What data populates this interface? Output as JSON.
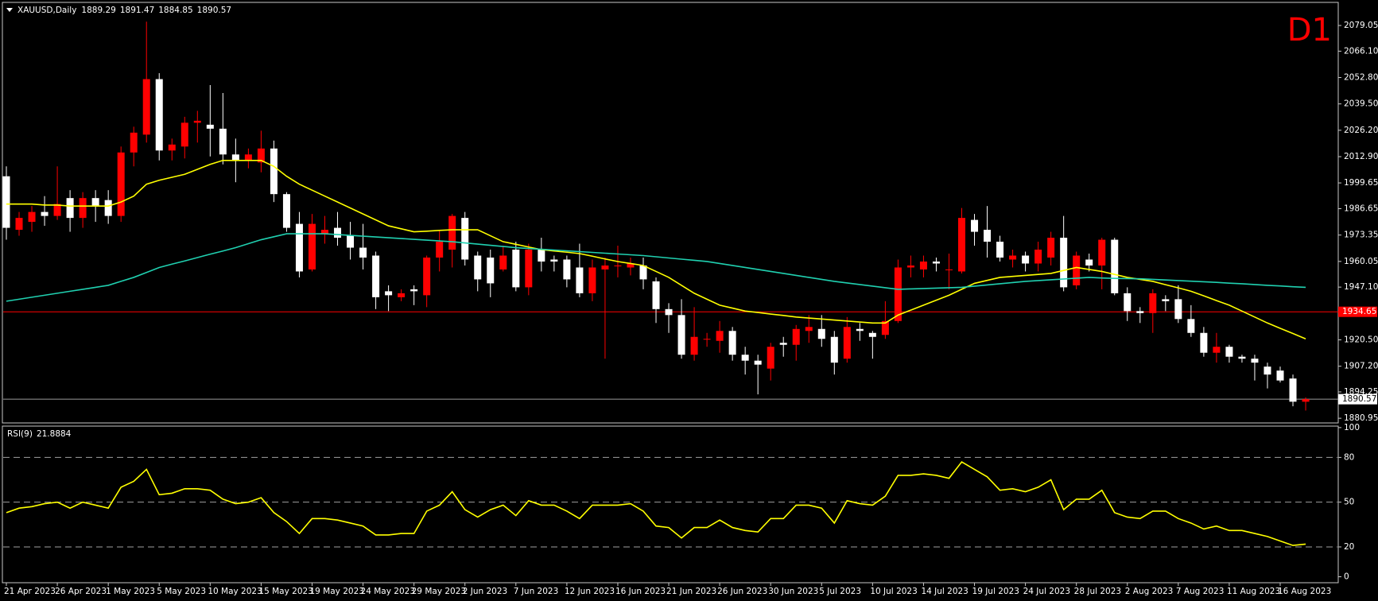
{
  "chart_data": [
    {
      "type": "candlestick",
      "title": "XAUUSD,Daily",
      "watermark": "D1",
      "watermark_color": "#ff0000",
      "categories": [
        "21 Apr 2023",
        null,
        null,
        null,
        "26 Apr 2023",
        null,
        null,
        null,
        "1 May 2023",
        null,
        null,
        null,
        "5 May 2023",
        null,
        null,
        null,
        "10 May 2023",
        null,
        null,
        null,
        "15 May 2023",
        null,
        null,
        null,
        "19 May 2023",
        null,
        null,
        null,
        "24 May 2023",
        null,
        null,
        null,
        "29 May 2023",
        null,
        null,
        null,
        "2 Jun 2023",
        null,
        null,
        null,
        "7 Jun 2023",
        null,
        null,
        null,
        "12 Jun 2023",
        null,
        null,
        null,
        "16 Jun 2023",
        null,
        null,
        null,
        "21 Jun 2023",
        null,
        null,
        null,
        "26 Jun 2023",
        null,
        null,
        null,
        "30 Jun 2023",
        null,
        null,
        null,
        "5 Jul 2023",
        null,
        null,
        null,
        "10 Jul 2023",
        null,
        null,
        null,
        "14 Jul 2023",
        null,
        null,
        null,
        "19 Jul 2023",
        null,
        null,
        null,
        "24 Jul 2023",
        null,
        null,
        null,
        "28 Jul 2023",
        null,
        null,
        null,
        "2 Aug 2023",
        null,
        null,
        null,
        "7 Aug 2023",
        null,
        null,
        null,
        "11 Aug 2023",
        null,
        null,
        null,
        "16 Aug 2023",
        null,
        null
      ],
      "open": [
        2003,
        1976,
        1980,
        1985,
        1983,
        1992,
        1982,
        1992,
        1991,
        1983,
        2015,
        2024,
        2052,
        2016,
        2018,
        2030,
        2029,
        2027,
        2014,
        2011,
        2010,
        2017,
        1994,
        1979,
        1956,
        1974,
        1977,
        1973,
        1967,
        1963,
        1945,
        1942,
        1946,
        1943,
        1962,
        1966,
        1982,
        1963,
        1962,
        1956,
        1966,
        1947,
        1966,
        1961,
        1961,
        1957,
        1944,
        1956,
        1958,
        1957,
        1958,
        1950,
        1936,
        1933,
        1913,
        1921,
        1920,
        1925,
        1913,
        1910,
        1906,
        1919,
        1918,
        1925,
        1926,
        1922,
        1911,
        1926,
        1924,
        1923,
        1930,
        1957,
        1956,
        1960,
        1956,
        1955,
        1981,
        1976,
        1970,
        1961,
        1963,
        1959,
        1962,
        1972,
        1948,
        1961,
        1958,
        1971,
        1944,
        1935,
        1934,
        1941,
        1941,
        1931,
        1924,
        1914,
        1917,
        1912,
        1911,
        1907,
        1905,
        1901,
        1889.29
      ],
      "high": [
        2008,
        1985,
        1988,
        1993,
        2008,
        1996,
        1995,
        1996,
        1996,
        2018,
        2028,
        2081,
        2055,
        2022,
        2033,
        2036,
        2049,
        2045,
        2022,
        2017,
        2026,
        2021,
        1995,
        1985,
        1984,
        1983,
        1985,
        1980,
        1979,
        1965,
        1948,
        1946,
        1948,
        1963,
        1976,
        1984,
        1985,
        1965,
        1966,
        1968,
        1970,
        1969,
        1972,
        1963,
        1963,
        1969,
        1961,
        1962,
        1968,
        1962,
        1962,
        1952,
        1939,
        1941,
        1937,
        1924,
        1930,
        1927,
        1917,
        1913,
        1919,
        1922,
        1928,
        1933,
        1933,
        1925,
        1932,
        1929,
        1925,
        1940,
        1961,
        1963,
        1963,
        1962,
        1964,
        1987,
        1984,
        1988,
        1973,
        1966,
        1965,
        1970,
        1975,
        1983,
        1965,
        1964,
        1972,
        1972,
        1947,
        1937,
        1946,
        1943,
        1948,
        1938,
        1927,
        1924,
        1918,
        1913,
        1913,
        1909,
        1907,
        1903,
        1891.47
      ],
      "low": [
        1971,
        1973,
        1975,
        1978,
        1981,
        1975,
        1977,
        1980,
        1979,
        1980,
        2008,
        2020,
        2011,
        2011,
        2012,
        2020,
        2013,
        2009,
        2000,
        2007,
        2005,
        1990,
        1975,
        1952,
        1955,
        1969,
        1968,
        1961,
        1956,
        1936,
        1935,
        1940,
        1938,
        1937,
        1955,
        1957,
        1958,
        1945,
        1942,
        1955,
        1945,
        1943,
        1955,
        1955,
        1947,
        1942,
        1940,
        1911,
        1952,
        1953,
        1946,
        1929,
        1924,
        1911,
        1910,
        1917,
        1914,
        1910,
        1903,
        1893,
        1900,
        1912,
        1910,
        1919,
        1917,
        1903,
        1909,
        1920,
        1911,
        1921,
        1929,
        1952,
        1952,
        1955,
        1946,
        1954,
        1968,
        1962,
        1960,
        1957,
        1955,
        1955,
        1958,
        1945,
        1946,
        1955,
        1946,
        1943,
        1930,
        1929,
        1924,
        1935,
        1929,
        1922,
        1912,
        1909,
        1909,
        1909,
        1900,
        1896,
        1899,
        1887,
        1884.85
      ],
      "close": [
        1977,
        1982,
        1985,
        1983,
        1989,
        1982,
        1992,
        1988,
        1983,
        2015,
        2025,
        2052,
        2016,
        2019,
        2030,
        2031,
        2027,
        2014,
        2011,
        2014,
        2017,
        1994,
        1977,
        1955,
        1979,
        1976,
        1972,
        1967,
        1962,
        1942,
        1943,
        1944,
        1945,
        1962,
        1970,
        1983,
        1961,
        1951,
        1949,
        1963,
        1947,
        1966,
        1960,
        1960,
        1951,
        1944,
        1957,
        1958,
        1958,
        1959,
        1951,
        1936,
        1933,
        1913,
        1922,
        1921,
        1925,
        1913,
        1910,
        1908,
        1917,
        1918,
        1926,
        1927,
        1921,
        1909,
        1927,
        1925,
        1922,
        1930,
        1957,
        1958,
        1960,
        1959,
        1956,
        1982,
        1975,
        1970,
        1962,
        1963,
        1959,
        1966,
        1972,
        1947,
        1963,
        1958,
        1971,
        1944,
        1935,
        1934,
        1944,
        1940,
        1931,
        1924,
        1914,
        1917,
        1912,
        1911,
        1909,
        1903,
        1900,
        1889.3,
        1890.57
      ],
      "up_color": "#ff0000",
      "down_color": "#ffffff",
      "series": [
        {
          "color": "#ffff00",
          "values": [
            1989,
            1989,
            1989,
            1988.5,
            1988.5,
            1988,
            1988,
            1988,
            1988,
            1990,
            1993,
            1999,
            2001,
            2002.5,
            2004,
            2006.5,
            2009,
            2011,
            2011,
            2011,
            2011,
            2008,
            2003,
            1999,
            1996,
            1993,
            1990,
            1987,
            1984,
            1981,
            1978,
            1976.5,
            1975,
            1975.3,
            1975.7,
            1976,
            1976,
            1976,
            1973,
            1970,
            1968.7,
            1967.3,
            1966,
            1965.3,
            1964.7,
            1964,
            1962.7,
            1961.3,
            1960,
            1959,
            1958,
            1955,
            1952,
            1948,
            1944,
            1941,
            1938,
            1936.5,
            1935,
            1934.3,
            1933.5,
            1932.8,
            1932,
            1931.5,
            1931,
            1930.5,
            1930,
            1929.5,
            1929,
            1929,
            1933,
            1935.5,
            1938,
            1940.5,
            1943,
            1946,
            1949,
            1950.5,
            1952,
            1952.5,
            1953,
            1953.5,
            1954,
            1955.5,
            1957,
            1956,
            1955,
            1953.5,
            1952,
            1951,
            1950,
            1948.3,
            1946.7,
            1945,
            1942.7,
            1940.3,
            1938,
            1935,
            1932,
            1929,
            1926.3,
            1923.7,
            1921
          ]
        },
        {
          "color": "#20d0b0",
          "values": [
            1940,
            1941,
            1942,
            1943,
            1944,
            1945,
            1946,
            1947,
            1948,
            1950,
            1952,
            1954.5,
            1957,
            1958.7,
            1960.3,
            1962,
            1963.7,
            1965.3,
            1967,
            1969,
            1971,
            1972.5,
            1974,
            1974,
            1974,
            1974,
            1973.6,
            1973.2,
            1972.8,
            1972.4,
            1972,
            1971.6,
            1971.2,
            1970.8,
            1970.4,
            1970,
            1969.4,
            1968.8,
            1968.2,
            1967.6,
            1967,
            1966.6,
            1966.2,
            1965.8,
            1965.4,
            1965,
            1964.6,
            1964.2,
            1963.8,
            1963.4,
            1963,
            1962.4,
            1961.8,
            1961.2,
            1960.6,
            1960,
            1959,
            1958,
            1957,
            1956,
            1955,
            1954,
            1953,
            1952,
            1951,
            1950,
            1949.2,
            1948.4,
            1947.6,
            1946.8,
            1946,
            1946.2,
            1946.4,
            1946.6,
            1946.8,
            1947,
            1947.6,
            1948.2,
            1948.8,
            1949.4,
            1950,
            1950.4,
            1950.8,
            1951.2,
            1951.6,
            1952,
            1951.7,
            1951.5,
            1951.4,
            1951.3,
            1951,
            1950.7,
            1950.4,
            1950.1,
            1949.8,
            1949.5,
            1949.1,
            1948.8,
            1948.4,
            1948,
            1947.7,
            1947.3,
            1947
          ]
        }
      ],
      "ylim": [
        1878.6,
        2090.7
      ],
      "yticks": [
        2079.05,
        {
          "value": 2066.1,
          "label": "2066.10"
        },
        {
          "value": 2052.8,
          "label": "2052.80"
        },
        {
          "value": 2039.5,
          "label": "2039.50"
        },
        {
          "value": 2026.2,
          "label": "2026.20"
        },
        {
          "value": 2012.9,
          "label": "2012.90"
        },
        1999.65,
        1986.65,
        1973.35,
        1960.05,
        {
          "value": 1947.1,
          "label": "1947.10"
        },
        {
          "value": 1920.5,
          "label": "1920.50"
        },
        {
          "value": 1907.2,
          "label": "1907.20"
        },
        1894.25,
        1880.95
      ],
      "hline": {
        "value": 1934.65,
        "color": "#ff0000"
      },
      "last_line_color": "#9a9a9a"
    },
    {
      "type": "line",
      "title": "RSI(9)",
      "color": "#ffff00",
      "values": [
        43,
        46,
        47,
        49,
        50,
        46,
        50,
        48,
        46,
        60,
        64,
        72,
        55,
        56,
        59,
        59,
        58,
        52,
        49,
        50,
        53,
        43,
        37,
        29,
        39,
        39,
        38,
        36,
        34,
        28,
        28,
        29,
        29,
        44,
        48,
        57,
        45,
        40,
        45,
        48,
        41,
        51,
        48,
        48,
        44,
        39,
        48,
        48,
        48,
        49,
        44,
        34,
        33,
        26,
        33,
        33,
        38,
        33,
        31,
        30,
        39,
        39,
        48,
        48,
        46,
        36,
        51,
        49,
        48,
        54,
        68,
        68,
        69,
        68,
        66,
        77,
        72,
        67,
        58,
        59,
        57,
        60,
        65,
        45,
        52,
        52,
        58,
        43,
        40,
        39,
        44,
        44,
        39,
        36,
        32,
        34,
        31,
        31,
        29,
        27,
        24,
        21,
        21.8884
      ],
      "ylim": [
        -4,
        101
      ],
      "yticks": [
        100,
        80,
        50,
        20,
        0
      ],
      "levels": [
        20,
        50,
        80
      ]
    }
  ]
}
